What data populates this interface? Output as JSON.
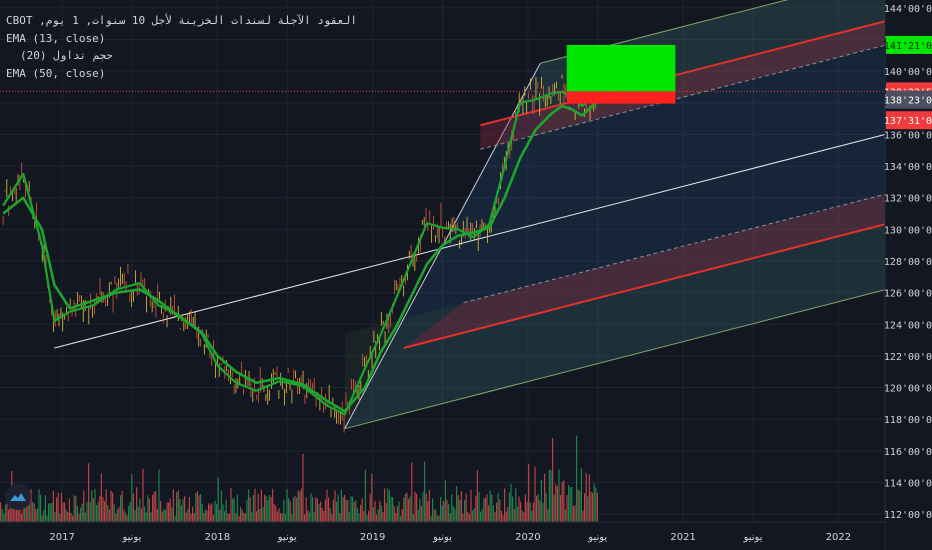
{
  "legend": {
    "title": "العقود الآجلة لسندات الخزينة لأجل 10 سنوات, 1 يوم, CBOT",
    "ema13": "EMA (13, close)",
    "volume": "حجم تداول (20)",
    "ema50": "EMA (50, close)"
  },
  "colors": {
    "background": "#131722",
    "ema": "#1ea52f",
    "candle_up": "#26a69a",
    "candle_down": "#ef5350",
    "channel_red": "#e0312c",
    "target_green": "#00e600",
    "stop_red": "#ff2020",
    "last_price_red": "#ef3b3b",
    "axis_text": "#d1d4dc"
  },
  "icons": {
    "logo": "tradingview-logo-icon"
  },
  "chart_data": {
    "type": "line",
    "instrument": "العقود الآجلة لسندات الخزينة لأجل 10 سنوات",
    "interval": "1 يوم",
    "exchange": "CBOT",
    "y_ticks": [
      "144'00'0",
      "142'00'0",
      "140'00'0",
      "138'00'0",
      "136'00'0",
      "134'00'0",
      "132'00'0",
      "130'00'0",
      "128'00'0",
      "126'00'0",
      "124'00'0",
      "122'00'0",
      "120'00'0",
      "118'00'0",
      "116'00'0",
      "114'00'0",
      "112'00'0"
    ],
    "ylim": [
      111.5,
      144.5
    ],
    "x_ticks": [
      "2017",
      "يونيو",
      "2018",
      "يونيو",
      "2019",
      "يونيو",
      "2020",
      "يونيو",
      "2021",
      "يونيو",
      "2022"
    ],
    "xlim": [
      2016.6,
      2022.3
    ],
    "price_labels": [
      {
        "text": "141'21'0",
        "value": 141.66,
        "color": "#00e600"
      },
      {
        "text": "138'23'5",
        "value": 138.72,
        "color": "#ef3b3b"
      },
      {
        "text": "138'23'0",
        "value": 138.2,
        "color": "#4a5060"
      },
      {
        "text": "137'31'0",
        "value": 136.9,
        "color": "#ef3b3b"
      }
    ],
    "series": [
      {
        "name": "EMA (13, close)",
        "x": [
          2016.62,
          2016.75,
          2016.87,
          2016.95,
          2017.05,
          2017.2,
          2017.35,
          2017.5,
          2017.62,
          2017.75,
          2017.9,
          2018.0,
          2018.12,
          2018.25,
          2018.4,
          2018.55,
          2018.7,
          2018.82,
          2018.95,
          2019.05,
          2019.15,
          2019.25,
          2019.35,
          2019.45,
          2019.55,
          2019.65,
          2019.75,
          2019.85,
          2019.95,
          2020.05,
          2020.15,
          2020.22,
          2020.28,
          2020.35,
          2020.45
        ],
        "y": [
          131.5,
          133.5,
          129,
          124.2,
          124.8,
          125.2,
          126.2,
          126.6,
          125.2,
          124.6,
          123.4,
          121.4,
          120.3,
          119.8,
          120.4,
          120.1,
          118.9,
          118.3,
          121.2,
          123.3,
          125.6,
          128,
          130.4,
          130.1,
          130,
          129.5,
          130.3,
          134,
          138,
          138.2,
          138.6,
          138.7,
          138.4,
          137.8,
          138.6
        ]
      },
      {
        "name": "EMA (50, close)",
        "x": [
          2016.62,
          2016.75,
          2016.87,
          2016.95,
          2017.05,
          2017.2,
          2017.35,
          2017.5,
          2017.62,
          2017.75,
          2017.9,
          2018.0,
          2018.12,
          2018.25,
          2018.4,
          2018.55,
          2018.7,
          2018.82,
          2018.95,
          2019.05,
          2019.15,
          2019.25,
          2019.35,
          2019.45,
          2019.55,
          2019.65,
          2019.75,
          2019.85,
          2019.95,
          2020.05,
          2020.15,
          2020.22,
          2020.28,
          2020.35,
          2020.45
        ],
        "y": [
          131,
          132,
          130,
          126.5,
          125,
          125.5,
          126,
          126.2,
          125.5,
          124.5,
          123.5,
          122,
          121,
          120.3,
          120.6,
          120.2,
          119.2,
          118.5,
          120,
          122.2,
          123.8,
          125.8,
          127.8,
          129,
          129.6,
          129.8,
          130.1,
          132,
          134.5,
          136.3,
          137.3,
          137.8,
          137.6,
          137.2,
          138.1
        ]
      }
    ],
    "channel_white": {
      "x": [
        2016.95,
        2022.3
      ],
      "y": [
        122.5,
        136
      ]
    },
    "pitchfork": {
      "pivot_x": 2018.82,
      "pivot_y": 117.4,
      "top_x": 2020.08,
      "top_y": 140.5
    },
    "position": {
      "entry": 138.72,
      "target": 141.66,
      "stop": 137.95,
      "x_from": 2020.25,
      "x_to": 2020.95
    }
  }
}
